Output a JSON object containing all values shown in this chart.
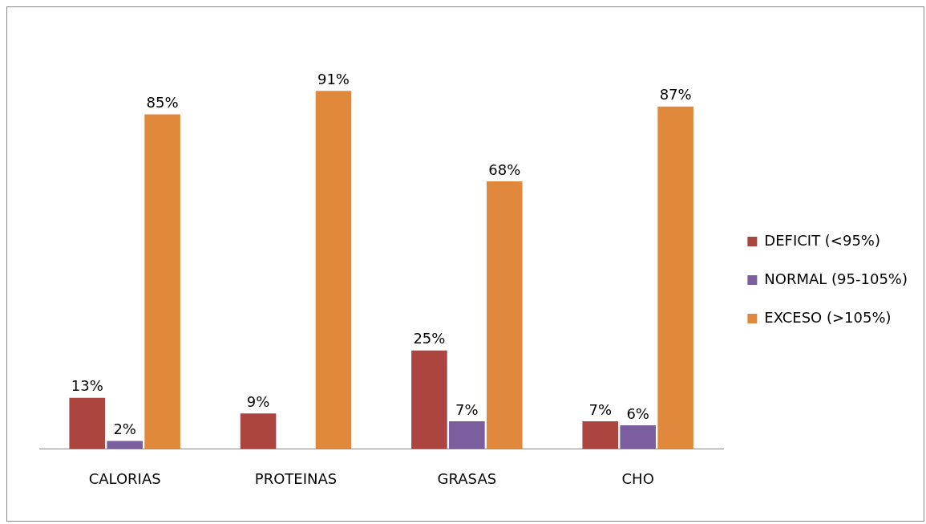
{
  "chart_data": {
    "type": "bar",
    "categories": [
      "CALORIAS",
      "PROTEINAS",
      "GRASAS",
      "CHO"
    ],
    "series": [
      {
        "name": "DEFICIT (<95%)",
        "color": "#ac4440",
        "values": [
          13,
          9,
          25,
          7
        ],
        "value_labels": [
          "13%",
          "9%",
          "25%",
          "7%"
        ]
      },
      {
        "name": "NORMAL (95-105%)",
        "color": "#7b5e9e",
        "values": [
          2,
          null,
          7,
          6
        ],
        "value_labels": [
          "2%",
          null,
          "7%",
          "6%"
        ]
      },
      {
        "name": "EXCESO (>105%)",
        "color": "#e0883c",
        "values": [
          85,
          91,
          68,
          87
        ],
        "value_labels": [
          "85%",
          "91%",
          "68%",
          "87%"
        ]
      }
    ],
    "legend": "right",
    "grid": false,
    "tick_labels": "x"
  }
}
